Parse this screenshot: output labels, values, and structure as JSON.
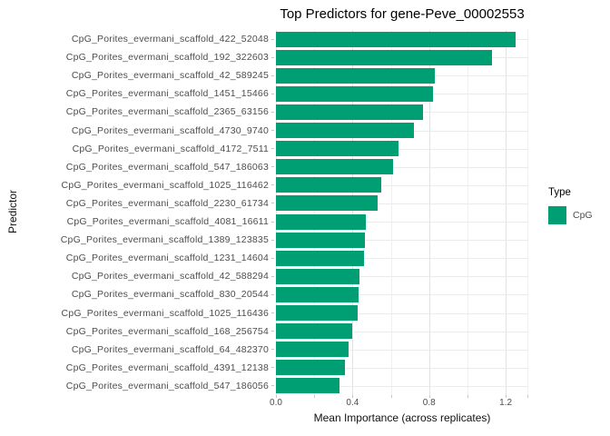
{
  "chart_data": {
    "type": "bar",
    "orientation": "horizontal",
    "title": "Top Predictors for gene-Peve_00002553",
    "xlabel": "Mean Importance (across replicates)",
    "ylabel": "Predictor",
    "legend_title": "Type",
    "legend_position": "right",
    "grid": true,
    "xlim": [
      0,
      1.318
    ],
    "x_major_gridlines": [
      0,
      0.4,
      0.8,
      1.2
    ],
    "x_minor_gridlines": [
      0.2,
      0.6,
      1.0,
      1.318
    ],
    "x_tick_marks": [
      0,
      0.2,
      0.4,
      0.6,
      0.8,
      1.0,
      1.2,
      1.318
    ],
    "x_major_ticks": [
      0,
      0.4,
      0.8,
      1.2
    ],
    "x_tick_labels": [
      "0.0",
      "0.4",
      "0.8",
      "1.2"
    ],
    "bar_color": "#009E73",
    "series": [
      {
        "name": "CpG",
        "color": "#009E73"
      }
    ],
    "categories": [
      "CpG_Porites_evermani_scaffold_422_52048",
      "CpG_Porites_evermani_scaffold_192_322603",
      "CpG_Porites_evermani_scaffold_42_589245",
      "CpG_Porites_evermani_scaffold_1451_15466",
      "CpG_Porites_evermani_scaffold_2365_63156",
      "CpG_Porites_evermani_scaffold_4730_9740",
      "CpG_Porites_evermani_scaffold_4172_7511",
      "CpG_Porites_evermani_scaffold_547_186063",
      "CpG_Porites_evermani_scaffold_1025_116462",
      "CpG_Porites_evermani_scaffold_2230_61734",
      "CpG_Porites_evermani_scaffold_4081_16611",
      "CpG_Porites_evermani_scaffold_1389_123835",
      "CpG_Porites_evermani_scaffold_1231_14604",
      "CpG_Porites_evermani_scaffold_42_588294",
      "CpG_Porites_evermani_scaffold_830_20544",
      "CpG_Porites_evermani_scaffold_1025_116436",
      "CpG_Porites_evermani_scaffold_168_256754",
      "CpG_Porites_evermani_scaffold_64_482370",
      "CpG_Porites_evermani_scaffold_4391_12138",
      "CpG_Porites_evermani_scaffold_547_186056"
    ],
    "values": [
      1.25,
      1.13,
      0.83,
      0.82,
      0.77,
      0.72,
      0.64,
      0.61,
      0.55,
      0.53,
      0.47,
      0.465,
      0.46,
      0.435,
      0.43,
      0.425,
      0.4,
      0.38,
      0.36,
      0.33
    ]
  }
}
